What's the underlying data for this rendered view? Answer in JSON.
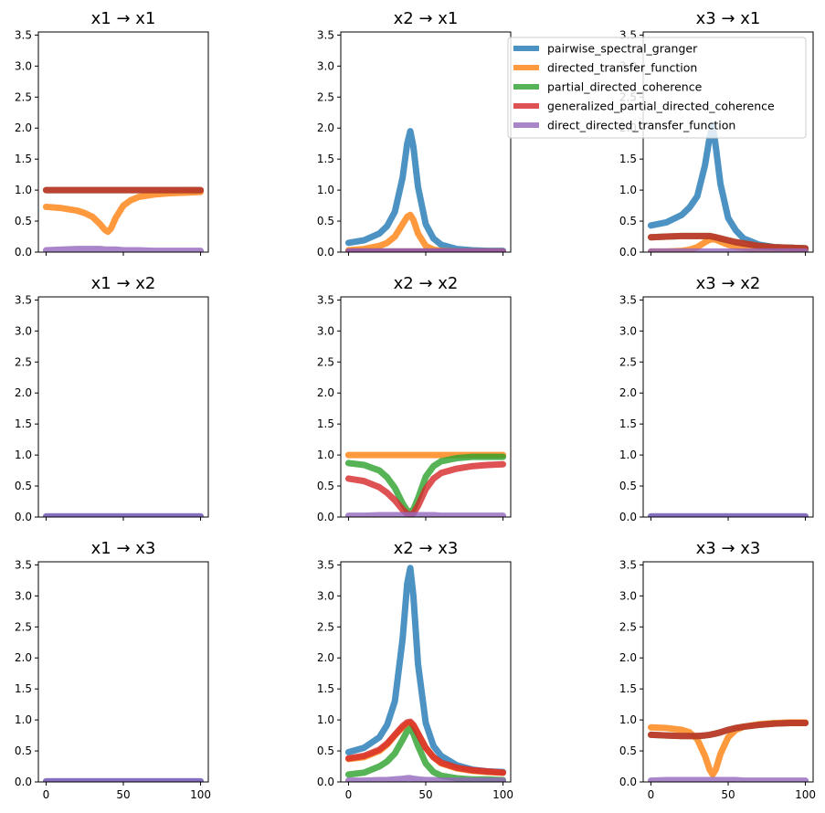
{
  "chart_data": {
    "type": "line",
    "layout": "3x3 grid",
    "ylim": [
      0,
      3.55
    ],
    "xlim": [
      -5,
      105
    ],
    "yticks": [
      "0.0",
      "0.5",
      "1.0",
      "1.5",
      "2.0",
      "2.5",
      "3.0",
      "3.5"
    ],
    "xticks": [
      "0",
      "50",
      "100"
    ],
    "xticks_shown_on_bottom_row_only": true,
    "legend": {
      "placement": "top-right",
      "entries": [
        {
          "name": "pairwise_spectral_granger",
          "color": "#1f77b4"
        },
        {
          "name": "directed_transfer_function",
          "color": "#ff7f0e"
        },
        {
          "name": "partial_directed_coherence",
          "color": "#2ca02c"
        },
        {
          "name": "generalized_partial_directed_coherence",
          "color": "#d62728"
        },
        {
          "name": "direct_directed_transfer_function",
          "color": "#9467bd"
        }
      ]
    },
    "x": [
      0,
      10,
      20,
      25,
      30,
      35,
      38,
      40,
      42,
      45,
      50,
      55,
      60,
      70,
      80,
      90,
      100
    ],
    "panels": [
      {
        "title": "x1 → x1",
        "series": {
          "directed_transfer_function": [
            0.73,
            0.71,
            0.67,
            0.63,
            0.57,
            0.45,
            0.36,
            0.33,
            0.38,
            0.55,
            0.75,
            0.84,
            0.89,
            0.93,
            0.95,
            0.96,
            0.97
          ],
          "partial_directed_coherence": [
            1,
            1,
            1,
            1,
            1,
            1,
            1,
            1,
            1,
            1,
            1,
            1,
            1,
            1,
            1,
            1,
            1
          ],
          "generalized_partial_directed_coherence": [
            1,
            1,
            1,
            1,
            1,
            1,
            1,
            1,
            1,
            1,
            1,
            1,
            1,
            1,
            1,
            1,
            1
          ],
          "direct_directed_transfer_function": [
            0.03,
            0.04,
            0.05,
            0.05,
            0.05,
            0.05,
            0.04,
            0.04,
            0.04,
            0.04,
            0.03,
            0.03,
            0.03,
            0.02,
            0.02,
            0.02,
            0.02
          ]
        }
      },
      {
        "title": "x2 → x1",
        "series": {
          "pairwise_spectral_granger": [
            0.15,
            0.19,
            0.3,
            0.42,
            0.65,
            1.2,
            1.75,
            1.95,
            1.7,
            1.05,
            0.45,
            0.22,
            0.12,
            0.05,
            0.03,
            0.02,
            0.02
          ],
          "directed_transfer_function": [
            0.03,
            0.05,
            0.1,
            0.15,
            0.25,
            0.45,
            0.57,
            0.6,
            0.52,
            0.3,
            0.1,
            0.04,
            0.02,
            0.01,
            0.01,
            0.01,
            0.01
          ],
          "partial_directed_coherence": [
            0.01,
            0.01,
            0.01,
            0.01,
            0.01,
            0.01,
            0.01,
            0.01,
            0.01,
            0.01,
            0.01,
            0.01,
            0.01,
            0.01,
            0.01,
            0.01,
            0.01
          ],
          "generalized_partial_directed_coherence": [
            0.01,
            0.01,
            0.01,
            0.01,
            0.01,
            0.01,
            0.01,
            0.01,
            0.01,
            0.01,
            0.01,
            0.01,
            0.01,
            0.01,
            0.01,
            0.01,
            0.01
          ],
          "direct_directed_transfer_function": [
            0.01,
            0.01,
            0.01,
            0.01,
            0.01,
            0.01,
            0.01,
            0.01,
            0.01,
            0.01,
            0.01,
            0.01,
            0.01,
            0.01,
            0.01,
            0.01,
            0.01
          ]
        }
      },
      {
        "title": "x3 → x1",
        "series": {
          "pairwise_spectral_granger": [
            0.43,
            0.48,
            0.6,
            0.72,
            0.9,
            1.4,
            1.85,
            2.05,
            1.7,
            1.1,
            0.55,
            0.35,
            0.22,
            0.12,
            0.08,
            0.07,
            0.06
          ],
          "directed_transfer_function": [
            0.01,
            0.01,
            0.02,
            0.04,
            0.08,
            0.16,
            0.2,
            0.21,
            0.2,
            0.17,
            0.12,
            0.09,
            0.07,
            0.05,
            0.04,
            0.03,
            0.03
          ],
          "partial_directed_coherence": [
            0.24,
            0.25,
            0.26,
            0.26,
            0.26,
            0.26,
            0.26,
            0.25,
            0.24,
            0.22,
            0.19,
            0.16,
            0.14,
            0.1,
            0.08,
            0.07,
            0.06
          ],
          "generalized_partial_directed_coherence": [
            0.24,
            0.25,
            0.26,
            0.26,
            0.26,
            0.26,
            0.26,
            0.25,
            0.24,
            0.22,
            0.19,
            0.16,
            0.14,
            0.1,
            0.08,
            0.07,
            0.06
          ],
          "direct_directed_transfer_function": [
            0.01,
            0.01,
            0.01,
            0.01,
            0.01,
            0.01,
            0.01,
            0.01,
            0.01,
            0.01,
            0.01,
            0.01,
            0.01,
            0.01,
            0.01,
            0.01,
            0.01
          ]
        }
      },
      {
        "title": "x1 → x2",
        "series": {
          "pairwise_spectral_granger": [
            0.01,
            0.01,
            0.01,
            0.01,
            0.01,
            0.01,
            0.01,
            0.01,
            0.01,
            0.01,
            0.01,
            0.01,
            0.01,
            0.01,
            0.01,
            0.01,
            0.01
          ],
          "direct_directed_transfer_function": [
            0.01,
            0.01,
            0.01,
            0.01,
            0.01,
            0.01,
            0.01,
            0.01,
            0.01,
            0.01,
            0.01,
            0.01,
            0.01,
            0.01,
            0.01,
            0.01,
            0.01
          ]
        }
      },
      {
        "title": "x2 → x2",
        "series": {
          "directed_transfer_function": [
            1,
            1,
            1,
            1,
            1,
            1,
            1,
            1,
            1,
            1,
            1,
            1,
            1,
            1,
            1,
            1,
            1
          ],
          "partial_directed_coherence": [
            0.87,
            0.84,
            0.75,
            0.64,
            0.47,
            0.22,
            0.1,
            0.09,
            0.12,
            0.3,
            0.65,
            0.82,
            0.9,
            0.95,
            0.97,
            0.97,
            0.97
          ],
          "generalized_partial_directed_coherence": [
            0.62,
            0.58,
            0.48,
            0.39,
            0.27,
            0.12,
            0.05,
            0.04,
            0.06,
            0.18,
            0.45,
            0.62,
            0.71,
            0.78,
            0.82,
            0.84,
            0.85
          ],
          "direct_directed_transfer_function": [
            0.02,
            0.02,
            0.03,
            0.03,
            0.03,
            0.03,
            0.03,
            0.03,
            0.03,
            0.03,
            0.03,
            0.03,
            0.02,
            0.02,
            0.02,
            0.02,
            0.02
          ]
        }
      },
      {
        "title": "x3 → x2",
        "series": {
          "pairwise_spectral_granger": [
            0.01,
            0.01,
            0.01,
            0.01,
            0.01,
            0.01,
            0.01,
            0.01,
            0.01,
            0.01,
            0.01,
            0.01,
            0.01,
            0.01,
            0.01,
            0.01,
            0.01
          ],
          "direct_directed_transfer_function": [
            0.01,
            0.01,
            0.01,
            0.01,
            0.01,
            0.01,
            0.01,
            0.01,
            0.01,
            0.01,
            0.01,
            0.01,
            0.01,
            0.01,
            0.01,
            0.01,
            0.01
          ]
        }
      },
      {
        "title": "x1 → x3",
        "series": {
          "pairwise_spectral_granger": [
            0.01,
            0.01,
            0.01,
            0.01,
            0.01,
            0.01,
            0.01,
            0.01,
            0.01,
            0.01,
            0.01,
            0.01,
            0.01,
            0.01,
            0.01,
            0.01,
            0.01
          ],
          "direct_directed_transfer_function": [
            0.01,
            0.01,
            0.01,
            0.01,
            0.01,
            0.01,
            0.01,
            0.01,
            0.01,
            0.01,
            0.01,
            0.01,
            0.01,
            0.01,
            0.01,
            0.01,
            0.01
          ]
        }
      },
      {
        "title": "x2 → x3",
        "series": {
          "pairwise_spectral_granger": [
            0.48,
            0.55,
            0.72,
            0.92,
            1.3,
            2.3,
            3.2,
            3.45,
            3.0,
            1.9,
            0.95,
            0.58,
            0.42,
            0.27,
            0.2,
            0.17,
            0.16
          ],
          "directed_transfer_function": [
            0.37,
            0.4,
            0.5,
            0.6,
            0.75,
            0.88,
            0.94,
            0.95,
            0.9,
            0.78,
            0.55,
            0.4,
            0.3,
            0.22,
            0.18,
            0.16,
            0.15
          ],
          "partial_directed_coherence": [
            0.12,
            0.15,
            0.25,
            0.33,
            0.46,
            0.68,
            0.82,
            0.86,
            0.78,
            0.58,
            0.3,
            0.16,
            0.1,
            0.06,
            0.04,
            0.04,
            0.03
          ],
          "generalized_partial_directed_coherence": [
            0.38,
            0.42,
            0.52,
            0.62,
            0.76,
            0.9,
            0.96,
            0.97,
            0.92,
            0.78,
            0.55,
            0.4,
            0.31,
            0.23,
            0.19,
            0.17,
            0.15
          ],
          "direct_directed_transfer_function": [
            0.02,
            0.02,
            0.03,
            0.03,
            0.04,
            0.05,
            0.06,
            0.06,
            0.05,
            0.04,
            0.03,
            0.03,
            0.02,
            0.02,
            0.02,
            0.02,
            0.02
          ]
        }
      },
      {
        "title": "x3 → x3",
        "series": {
          "directed_transfer_function": [
            0.88,
            0.87,
            0.84,
            0.8,
            0.69,
            0.42,
            0.2,
            0.12,
            0.2,
            0.45,
            0.72,
            0.84,
            0.89,
            0.93,
            0.95,
            0.96,
            0.96
          ],
          "partial_directed_coherence": [
            0.76,
            0.75,
            0.74,
            0.74,
            0.74,
            0.75,
            0.76,
            0.77,
            0.78,
            0.8,
            0.84,
            0.87,
            0.89,
            0.92,
            0.94,
            0.95,
            0.95
          ],
          "generalized_partial_directed_coherence": [
            0.76,
            0.75,
            0.74,
            0.74,
            0.74,
            0.75,
            0.76,
            0.77,
            0.78,
            0.8,
            0.84,
            0.87,
            0.89,
            0.92,
            0.94,
            0.95,
            0.95
          ],
          "direct_directed_transfer_function": [
            0.02,
            0.03,
            0.03,
            0.03,
            0.03,
            0.03,
            0.03,
            0.03,
            0.03,
            0.03,
            0.03,
            0.03,
            0.02,
            0.02,
            0.02,
            0.02,
            0.02
          ]
        }
      }
    ]
  }
}
